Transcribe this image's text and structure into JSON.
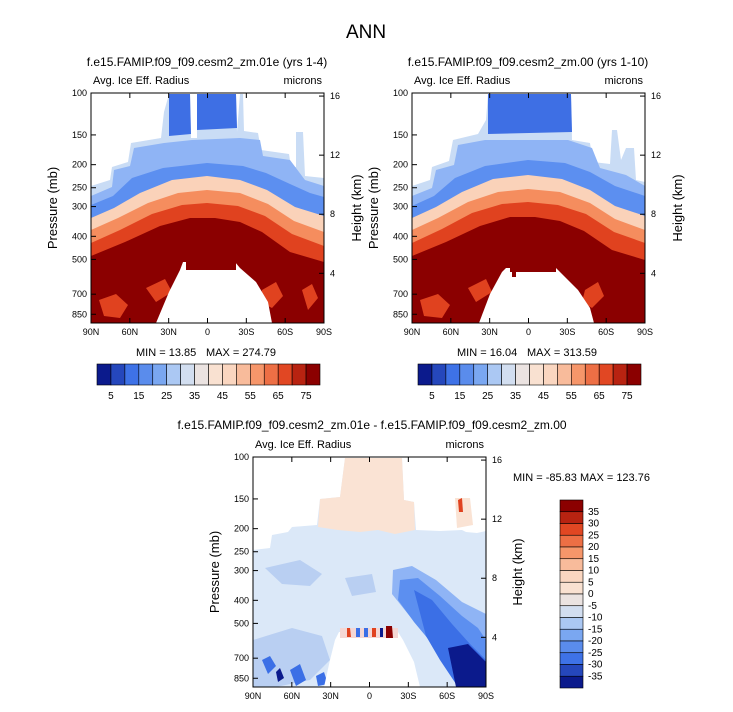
{
  "page_title": "ANN",
  "colors": {
    "dark_red": "#8b0000",
    "red": "#e0421f",
    "orange": "#f58d5e",
    "light_orange": "#fad2b9",
    "pale": "#f8e6da",
    "light_blue": "#c9dcf5",
    "blue": "#6e9ff0",
    "mid_blue": "#3b6fe6",
    "dark_blue": "#0b1a8c"
  },
  "chart_data": [
    {
      "type": "heatmap",
      "id": "panel-a",
      "title": "f.e15.FAMIP.f09_f09.cesm2_zm.01e (yrs 1-4)",
      "left_label": "Avg. Ice Eff. Radius",
      "right_label": "microns",
      "ylabel": "Pressure (mb)",
      "ylabel_right": "Height (km)",
      "x_ticks": [
        "90N",
        "60N",
        "30N",
        "0",
        "30S",
        "60S",
        "90S"
      ],
      "x_range": [
        90,
        -90
      ],
      "y_ticks": [
        100,
        150,
        200,
        250,
        300,
        400,
        500,
        700,
        850
      ],
      "y_ticks_right": [
        16,
        12,
        8,
        4
      ],
      "min_label": "MIN = 13.85",
      "max_label": "MAX = 274.79",
      "min": 13.85,
      "max": 274.79,
      "colorbar_levels": [
        5,
        15,
        25,
        35,
        45,
        55,
        65,
        75
      ]
    },
    {
      "type": "heatmap",
      "id": "panel-b",
      "title": "f.e15.FAMIP.f09_f09.cesm2_zm.00 (yrs 1-10)",
      "left_label": "Avg. Ice Eff. Radius",
      "right_label": "microns",
      "ylabel": "Pressure (mb)",
      "ylabel_right": "Height (km)",
      "x_ticks": [
        "90N",
        "60N",
        "30N",
        "0",
        "30S",
        "60S",
        "90S"
      ],
      "x_range": [
        90,
        -90
      ],
      "y_ticks": [
        100,
        150,
        200,
        250,
        300,
        400,
        500,
        700,
        850
      ],
      "y_ticks_right": [
        16,
        12,
        8,
        4
      ],
      "min_label": "MIN = 16.04",
      "max_label": "MAX = 313.59",
      "min": 16.04,
      "max": 313.59,
      "colorbar_levels": [
        5,
        15,
        25,
        35,
        45,
        55,
        65,
        75
      ]
    },
    {
      "type": "heatmap",
      "id": "panel-diff",
      "title": "f.e15.FAMIP.f09_f09.cesm2_zm.01e - f.e15.FAMIP.f09_f09.cesm2_zm.00",
      "left_label": "Avg. Ice Eff. Radius",
      "right_label": "microns",
      "ylabel": "Pressure (mb)",
      "ylabel_right": "Height (km)",
      "x_ticks": [
        "90N",
        "60N",
        "30N",
        "0",
        "30S",
        "60S",
        "90S"
      ],
      "x_range": [
        90,
        -90
      ],
      "y_ticks": [
        100,
        150,
        200,
        250,
        300,
        400,
        500,
        700,
        850
      ],
      "y_ticks_right": [
        16,
        12,
        8,
        4
      ],
      "minmax_label": "MIN = -85.83   MAX = 123.76",
      "min": -85.83,
      "max": 123.76,
      "colorbar_levels": [
        35,
        30,
        25,
        20,
        15,
        10,
        5,
        0,
        -5,
        -10,
        -15,
        -20,
        -25,
        -30,
        -35
      ]
    }
  ]
}
